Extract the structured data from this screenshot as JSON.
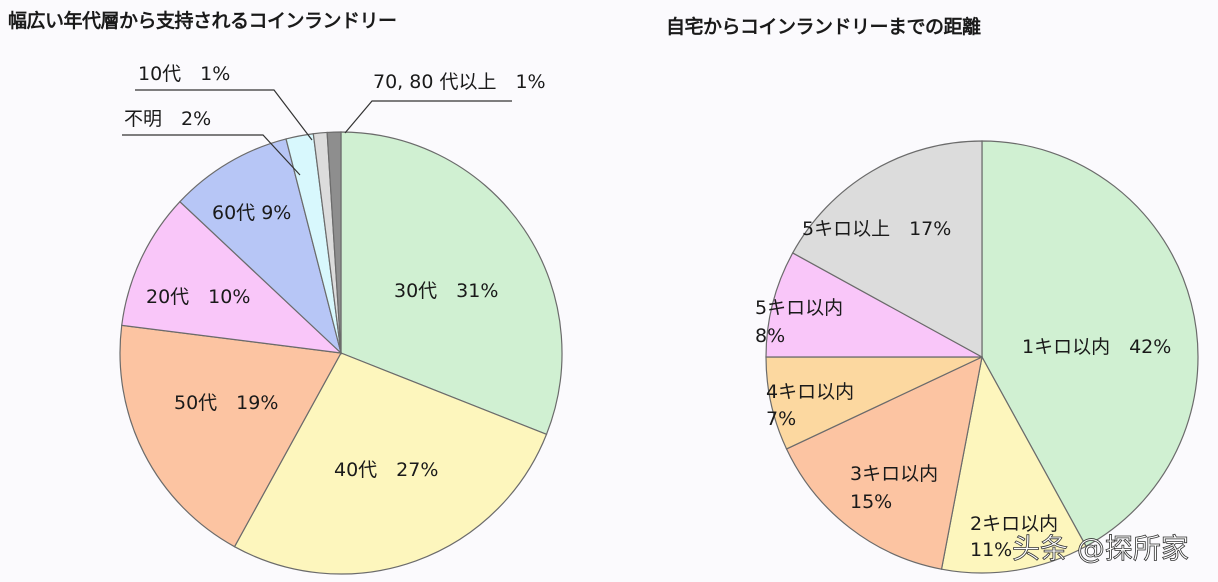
{
  "chart_data": [
    {
      "type": "pie",
      "title": "幅広い年代層から支持されるコインランドリー",
      "categories": [
        "30代",
        "40代",
        "50代",
        "20代",
        "60代",
        "不明",
        "10代",
        "70, 80 代以上"
      ],
      "values": [
        31,
        27,
        19,
        10,
        9,
        2,
        1,
        1
      ],
      "unit": "%",
      "colors": [
        "#d0f0d2",
        "#fdf6bd",
        "#fcc4a2",
        "#f9c6f9",
        "#b7c6f6",
        "#d8f8fd",
        "#dcdcdc",
        "#8e8e8e"
      ],
      "labels": [
        "30代　31%",
        "40代　27%",
        "50代　19%",
        "20代　10%",
        "60代 9%",
        "不明　2%",
        "10代　1%",
        "70, 80 代以上　1%"
      ],
      "start_angle": "top, clockwise",
      "legend": "none (direct labels and leader lines)"
    },
    {
      "type": "pie",
      "title": "自宅からコインランドリーまでの距離",
      "categories": [
        "1キロ以内",
        "2キロ以内",
        "3キロ以内",
        "4キロ以内",
        "5キロ以内",
        "5キロ以上"
      ],
      "values": [
        42,
        11,
        15,
        7,
        8,
        17
      ],
      "unit": "%",
      "colors": [
        "#d0f0d2",
        "#fdf6bd",
        "#fcc4a2",
        "#fcd8a0",
        "#f9c6f9",
        "#dcdcdc"
      ],
      "labels": [
        "1キロ以内　42%",
        "2キロ以内 11%",
        "3キロ以内 15%",
        "4キロ以内 7%",
        "5キロ以内 8%",
        "5キロ以上　17%"
      ],
      "start_angle": "top, clockwise",
      "legend": "none (direct labels)"
    }
  ],
  "titles": {
    "left": "幅広い年代層から支持されるコインランドリー",
    "right": "自宅からコインランドリーまでの距離"
  },
  "left_labels": {
    "s30": "30代　31%",
    "s40": "40代　27%",
    "s50": "50代　19%",
    "s20": "20代　10%",
    "s60": "60代 9%",
    "unknown": "不明　2%",
    "s10": "10代　1%",
    "s7080": "70, 80 代以上　1%"
  },
  "right_labels": {
    "k1": "1キロ以内　42%",
    "k2_name": "2キロ以内",
    "k2_pct": "11%",
    "k3_name": "3キロ以内",
    "k3_pct": "15%",
    "k4_name": "4キロ以内",
    "k4_pct": "7%",
    "k5_name": "5キロ以内",
    "k5_pct": "8%",
    "k5plus": "5キロ以上　17%"
  },
  "watermark": "头条 @探所家"
}
